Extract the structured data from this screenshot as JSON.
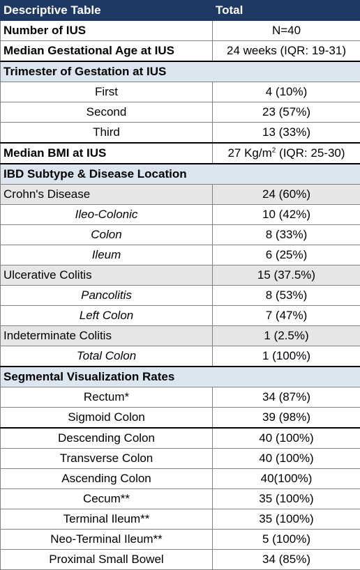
{
  "header": {
    "col1": "Descriptive Table",
    "col2": "Total"
  },
  "summary_rows": [
    {
      "label": "Number of IUS",
      "value": "N=40"
    },
    {
      "label": "Median Gestational Age at IUS",
      "value": "24 weeks (IQR: 19-31)"
    }
  ],
  "trimester": {
    "title": "Trimester of Gestation at IUS",
    "rows": [
      {
        "label": "First",
        "value": "4 (10%)"
      },
      {
        "label": "Second",
        "value": "23 (57%)"
      },
      {
        "label": "Third",
        "value": "13 (33%)"
      }
    ]
  },
  "bmi": {
    "label": "Median BMI at IUS",
    "value_prefix": "27 Kg/m",
    "value_sup": "2",
    "value_suffix": " (IQR: 25-30)"
  },
  "ibd": {
    "title": "IBD Subtype & Disease Location",
    "rows": [
      {
        "label": "Crohn's Disease",
        "value": "24 (60%)",
        "style": "group"
      },
      {
        "label": "Ileo-Colonic",
        "value": "10 (42%)",
        "style": "sub"
      },
      {
        "label": "Colon",
        "value": "8 (33%)",
        "style": "sub"
      },
      {
        "label": "Ileum",
        "value": "6 (25%)",
        "style": "sub"
      },
      {
        "label": "Ulcerative Colitis",
        "value": "15 (37.5%)",
        "style": "group"
      },
      {
        "label": "Pancolitis",
        "value": "8 (53%)",
        "style": "sub"
      },
      {
        "label": "Left Colon",
        "value": "7 (47%)",
        "style": "sub"
      },
      {
        "label": "Indeterminate Colitis",
        "value": "1 (2.5%)",
        "style": "group"
      },
      {
        "label": "Total Colon",
        "value": "1 (100%)",
        "style": "sub"
      }
    ]
  },
  "segmental": {
    "title": "Segmental Visualization Rates",
    "rows": [
      {
        "label": "Rectum*",
        "value": "34 (87%)"
      },
      {
        "label": "Sigmoid Colon",
        "value": "39 (98%)"
      },
      {
        "label": "Descending Colon",
        "value": "40 (100%)"
      },
      {
        "label": "Transverse Colon",
        "value": "40 (100%)"
      },
      {
        "label": "Ascending Colon",
        "value": "40(100%)"
      },
      {
        "label": "Cecum**",
        "value": "35 (100%)"
      },
      {
        "label": "Terminal Ileum**",
        "value": "35 (100%)"
      },
      {
        "label": "Neo-Terminal Ileum**",
        "value": "5 (100%)"
      },
      {
        "label": "Proximal Small Bowel",
        "value": "34 (85%)"
      }
    ]
  }
}
